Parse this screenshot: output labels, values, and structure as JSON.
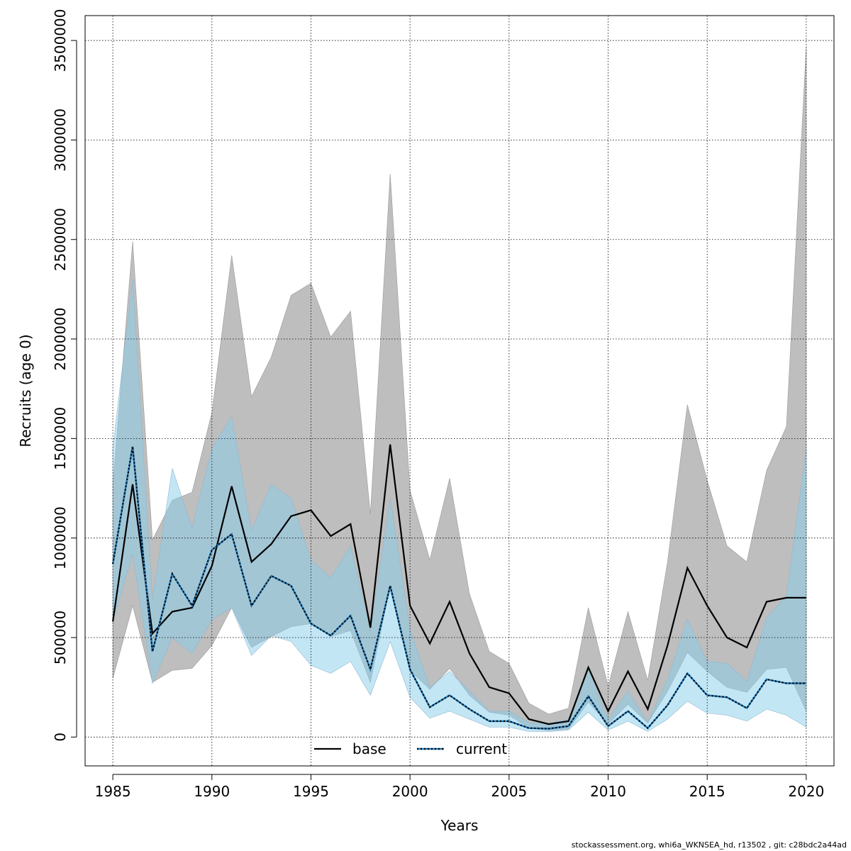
{
  "chart_data": {
    "type": "area",
    "xlabel": "Years",
    "ylabel": "Recruits (age 0)",
    "xlim": [
      1985,
      2020
    ],
    "ylim": [
      0,
      3500000
    ],
    "xticks": [
      1985,
      1990,
      1995,
      2000,
      2005,
      2010,
      2015,
      2020
    ],
    "yticks": [
      0,
      500000,
      1000000,
      1500000,
      2000000,
      2500000,
      3000000,
      3500000
    ],
    "grid": true,
    "legend_position": "bottom-center",
    "x": [
      1985,
      1986,
      1987,
      1988,
      1989,
      1990,
      1991,
      1992,
      1993,
      1994,
      1995,
      1996,
      1997,
      1998,
      1999,
      2000,
      2001,
      2002,
      2003,
      2004,
      2005,
      2006,
      2007,
      2008,
      2009,
      2010,
      2011,
      2012,
      2013,
      2014,
      2015,
      2016,
      2017,
      2018,
      2019,
      2020
    ],
    "series": [
      {
        "name": "base",
        "line_style": "solid",
        "line_color": "#000000",
        "band_color": "#bebebe",
        "values": [
          580000,
          1270000,
          520000,
          630000,
          650000,
          860000,
          1260000,
          880000,
          970000,
          1110000,
          1140000,
          1010000,
          1070000,
          550000,
          1470000,
          660000,
          470000,
          680000,
          420000,
          250000,
          220000,
          90000,
          65000,
          80000,
          350000,
          130000,
          330000,
          140000,
          460000,
          850000,
          660000,
          500000,
          450000,
          680000,
          700000,
          700000
        ],
        "lower": [
          295000,
          660000,
          275000,
          335000,
          345000,
          460000,
          650000,
          450000,
          505000,
          555000,
          570000,
          505000,
          535000,
          275000,
          760000,
          335000,
          240000,
          345000,
          210000,
          125000,
          110000,
          45000,
          33000,
          40000,
          175000,
          65000,
          165000,
          70000,
          230000,
          425000,
          330000,
          250000,
          225000,
          340000,
          350000,
          130000
        ],
        "upper": [
          1260000,
          2490000,
          990000,
          1190000,
          1230000,
          1630000,
          2420000,
          1710000,
          1910000,
          2220000,
          2280000,
          2010000,
          2140000,
          1120000,
          2830000,
          1240000,
          890000,
          1300000,
          720000,
          430000,
          370000,
          170000,
          115000,
          145000,
          650000,
          255000,
          630000,
          285000,
          880000,
          1670000,
          1290000,
          960000,
          880000,
          1340000,
          1560000,
          3470000
        ]
      },
      {
        "name": "current",
        "line_style": "dotted",
        "line_color": "#1f77b4",
        "band_color": "#87ceeb",
        "values": [
          870000,
          1460000,
          430000,
          820000,
          660000,
          940000,
          1020000,
          660000,
          810000,
          760000,
          570000,
          510000,
          610000,
          340000,
          760000,
          340000,
          150000,
          210000,
          140000,
          80000,
          80000,
          45000,
          42000,
          55000,
          205000,
          55000,
          130000,
          45000,
          160000,
          320000,
          210000,
          200000,
          145000,
          290000,
          270000,
          270000
        ],
        "lower": [
          580000,
          920000,
          270000,
          500000,
          420000,
          590000,
          650000,
          410000,
          510000,
          480000,
          360000,
          320000,
          380000,
          210000,
          480000,
          200000,
          95000,
          130000,
          90000,
          50000,
          50000,
          28000,
          27000,
          35000,
          125000,
          35000,
          80000,
          28000,
          90000,
          180000,
          120000,
          110000,
          80000,
          140000,
          110000,
          50000
        ],
        "upper": [
          1450000,
          2300000,
          690000,
          1350000,
          1050000,
          1450000,
          1610000,
          1040000,
          1270000,
          1200000,
          890000,
          800000,
          960000,
          530000,
          1200000,
          540000,
          250000,
          330000,
          230000,
          130000,
          130000,
          72000,
          68000,
          90000,
          340000,
          90000,
          230000,
          75000,
          290000,
          590000,
          380000,
          370000,
          280000,
          600000,
          710000,
          1450000
        ]
      }
    ]
  },
  "footer": "stockassessment.org, whi6a_WKNSEA_hd, r13502 , git: c28bdc2a44ad"
}
